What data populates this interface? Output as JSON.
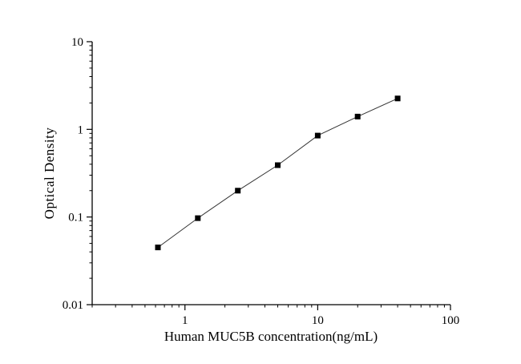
{
  "chart_data": {
    "type": "line",
    "title": "",
    "xlabel": "Human MUC5B concentration(ng/mL)",
    "ylabel": "Optical Density",
    "x_scale": "log",
    "y_scale": "log",
    "xlim": [
      0.2,
      100
    ],
    "ylim": [
      0.01,
      10
    ],
    "grid": false,
    "legend": "none",
    "axis_color": "#000000",
    "x_ticks": [
      {
        "value": 1,
        "label": "1"
      },
      {
        "value": 10,
        "label": "10"
      },
      {
        "value": 100,
        "label": "100"
      }
    ],
    "y_ticks": [
      {
        "value": 0.01,
        "label": "0.01"
      },
      {
        "value": 0.1,
        "label": "0.1"
      },
      {
        "value": 1,
        "label": "1"
      },
      {
        "value": 10,
        "label": "10"
      }
    ],
    "series": [
      {
        "name": "standard-curve",
        "marker": "square",
        "color": "#000000",
        "line_color": "#333333",
        "points": [
          {
            "x": 0.625,
            "y": 0.045
          },
          {
            "x": 1.25,
            "y": 0.097
          },
          {
            "x": 2.5,
            "y": 0.2
          },
          {
            "x": 5,
            "y": 0.39
          },
          {
            "x": 10,
            "y": 0.85
          },
          {
            "x": 20,
            "y": 1.4
          },
          {
            "x": 40,
            "y": 2.25
          }
        ]
      }
    ]
  }
}
